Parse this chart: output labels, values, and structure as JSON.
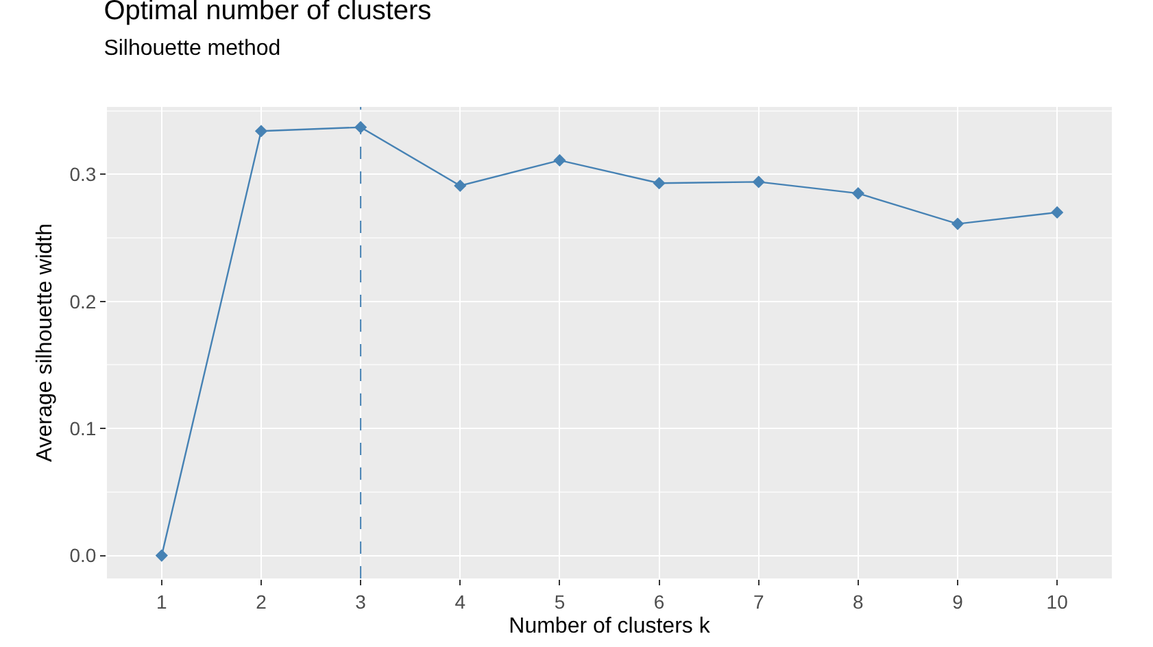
{
  "chart_data": {
    "type": "line",
    "title": "Optimal number of clusters",
    "subtitle": "Silhouette method",
    "xlabel": "Number of clusters k",
    "ylabel": "Average silhouette width",
    "categories": [
      "1",
      "2",
      "3",
      "4",
      "5",
      "6",
      "7",
      "8",
      "9",
      "10"
    ],
    "series": [
      {
        "color": "#4682b4",
        "values": [
          0,
          0.334,
          0.337,
          0.291,
          0.311,
          0.293,
          0.294,
          0.285,
          0.261,
          0.27
        ]
      }
    ],
    "ylim": [
      -0.018,
      0.353
    ],
    "yticks": [
      {
        "value": 0,
        "label": "0.0"
      },
      0.1,
      0.2,
      0.3
    ],
    "ref_lines": [
      {
        "axis": "x",
        "value": "3",
        "color": "#4682b4",
        "line_style": "dashed"
      }
    ],
    "grid": true,
    "marker": "diamond",
    "line_style": "solid"
  }
}
